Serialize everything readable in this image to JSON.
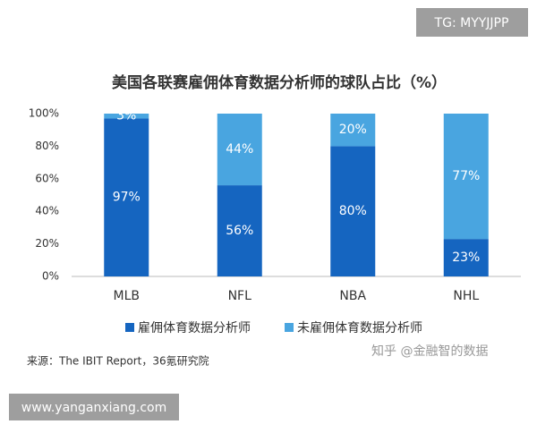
{
  "chart_data": {
    "type": "stacked-bar",
    "title": "美国各联赛雇佣体育数据分析师的球队占比（%）",
    "categories": [
      "MLB",
      "NFL",
      "NBA",
      "NHL"
    ],
    "series": [
      {
        "name": "雇佣体育数据分析师",
        "color": "#1565c0",
        "values": [
          97,
          56,
          80,
          23
        ],
        "value_labels": [
          "97%",
          "56%",
          "80%",
          "23%"
        ]
      },
      {
        "name": "未雇佣体育数据分析师",
        "color": "#49a5e0",
        "values": [
          3,
          44,
          20,
          77
        ],
        "value_labels": [
          "3%",
          "44%",
          "20%",
          "77%"
        ]
      }
    ],
    "ylim": [
      0,
      100
    ],
    "yticks": [
      {
        "value": 0,
        "label": "0%"
      },
      {
        "value": 20,
        "label": "20%"
      },
      {
        "value": 40,
        "label": "40%"
      },
      {
        "value": 60,
        "label": "60%"
      },
      {
        "value": 80,
        "label": "80%"
      },
      {
        "value": 100,
        "label": "100%"
      }
    ],
    "grid": false,
    "legend": "bottom",
    "source": "来源：The IBIT Report，36氪研究院"
  },
  "overlays": {
    "tag": "TG: MYYJJPP",
    "site": "www.yanganxiang.com",
    "watermark": "知乎 @金融智的数据"
  }
}
